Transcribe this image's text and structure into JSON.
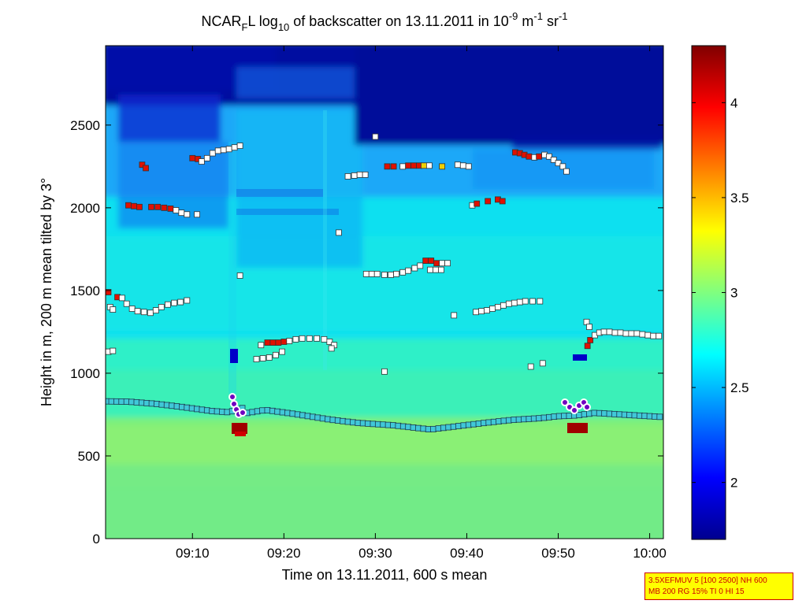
{
  "chart_data": {
    "type": "heatmap",
    "title": {
      "part1": "NCAR",
      "sub1": "F",
      "part2": "L log",
      "sub2": "10",
      "part3": " of backscatter on 13.11.2011 in 10",
      "sup1": "-9",
      "part4": " m",
      "sup2": "-1",
      "part5": " sr",
      "sup3": "-1"
    },
    "xlabel": "Time on 13.11.2011, 600 s mean",
    "ylabel": "Height in m, 200 m mean tilted by 3°",
    "xlim_minutes": [
      540.5,
      601.5
    ],
    "ylim": [
      0,
      2980
    ],
    "x_ticks": [
      {
        "minutes": 550,
        "label": "09:10"
      },
      {
        "minutes": 560,
        "label": "09:20"
      },
      {
        "minutes": 570,
        "label": "09:30"
      },
      {
        "minutes": 580,
        "label": "09:40"
      },
      {
        "minutes": 590,
        "label": "09:50"
      },
      {
        "minutes": 600,
        "label": "10:00"
      }
    ],
    "y_ticks": [
      0,
      500,
      1000,
      1500,
      2000,
      2500
    ],
    "colorbar": {
      "range": [
        1.7,
        4.3
      ],
      "ticks": [
        "2",
        "2.5",
        "3",
        "3.5",
        "4"
      ]
    },
    "boundary_layer_top": [
      [
        540.5,
        830
      ],
      [
        543,
        828
      ],
      [
        546,
        815
      ],
      [
        549,
        795
      ],
      [
        552,
        772
      ],
      [
        554,
        764
      ],
      [
        555.5,
        790
      ],
      [
        556,
        760
      ],
      [
        558,
        778
      ],
      [
        561,
        755
      ],
      [
        565,
        720
      ],
      [
        568,
        700
      ],
      [
        572,
        685
      ],
      [
        576,
        660
      ],
      [
        579,
        680
      ],
      [
        582,
        700
      ],
      [
        585,
        718
      ],
      [
        588,
        728
      ],
      [
        590,
        740
      ],
      [
        592,
        745
      ],
      [
        594,
        760
      ],
      [
        597,
        750
      ],
      [
        601.5,
        735
      ]
    ],
    "layer_points": [
      {
        "t": 540.8,
        "h": 1490,
        "v": "red"
      },
      {
        "t": 541,
        "h": 1400,
        "v": "white"
      },
      {
        "t": 541.3,
        "h": 1385,
        "v": "white"
      },
      {
        "t": 541.8,
        "h": 1460,
        "v": "red"
      },
      {
        "t": 542.3,
        "h": 1455,
        "v": "white"
      },
      {
        "t": 542.8,
        "h": 1420,
        "v": "white"
      },
      {
        "t": 543.4,
        "h": 1390,
        "v": "white"
      },
      {
        "t": 544,
        "h": 1375,
        "v": "white"
      },
      {
        "t": 544.7,
        "h": 1370,
        "v": "white"
      },
      {
        "t": 545.4,
        "h": 1365,
        "v": "white"
      },
      {
        "t": 546,
        "h": 1380,
        "v": "white"
      },
      {
        "t": 546.6,
        "h": 1400,
        "v": "white"
      },
      {
        "t": 547.3,
        "h": 1415,
        "v": "white"
      },
      {
        "t": 548,
        "h": 1425,
        "v": "white"
      },
      {
        "t": 548.7,
        "h": 1430,
        "v": "white"
      },
      {
        "t": 549.4,
        "h": 1440,
        "v": "white"
      },
      {
        "t": 540.8,
        "h": 1130,
        "v": "white"
      },
      {
        "t": 541.3,
        "h": 1135,
        "v": "white"
      },
      {
        "t": 543,
        "h": 2015,
        "v": "red"
      },
      {
        "t": 543.6,
        "h": 2010,
        "v": "red"
      },
      {
        "t": 544.2,
        "h": 2005,
        "v": "red"
      },
      {
        "t": 545.5,
        "h": 2005,
        "v": "red"
      },
      {
        "t": 546.2,
        "h": 2005,
        "v": "red"
      },
      {
        "t": 546.9,
        "h": 2000,
        "v": "red"
      },
      {
        "t": 547.6,
        "h": 1995,
        "v": "red"
      },
      {
        "t": 548.2,
        "h": 1985,
        "v": "white"
      },
      {
        "t": 548.8,
        "h": 1970,
        "v": "white"
      },
      {
        "t": 549.4,
        "h": 1960,
        "v": "white"
      },
      {
        "t": 550.5,
        "h": 1960,
        "v": "white"
      },
      {
        "t": 544.5,
        "h": 2260,
        "v": "red"
      },
      {
        "t": 544.9,
        "h": 2240,
        "v": "red"
      },
      {
        "t": 550,
        "h": 2300,
        "v": "red"
      },
      {
        "t": 550.6,
        "h": 2295,
        "v": "red"
      },
      {
        "t": 551,
        "h": 2280,
        "v": "white"
      },
      {
        "t": 551.6,
        "h": 2300,
        "v": "white"
      },
      {
        "t": 552.2,
        "h": 2330,
        "v": "white"
      },
      {
        "t": 552.8,
        "h": 2345,
        "v": "white"
      },
      {
        "t": 553.4,
        "h": 2350,
        "v": "white"
      },
      {
        "t": 554,
        "h": 2355,
        "v": "white"
      },
      {
        "t": 554.6,
        "h": 2365,
        "v": "white"
      },
      {
        "t": 555.2,
        "h": 2375,
        "v": "white"
      },
      {
        "t": 555.2,
        "h": 1590,
        "v": "white"
      },
      {
        "t": 557,
        "h": 1085,
        "v": "white"
      },
      {
        "t": 557.7,
        "h": 1090,
        "v": "white"
      },
      {
        "t": 558.4,
        "h": 1095,
        "v": "white"
      },
      {
        "t": 559.1,
        "h": 1110,
        "v": "white"
      },
      {
        "t": 559.8,
        "h": 1130,
        "v": "white"
      },
      {
        "t": 557.5,
        "h": 1170,
        "v": "white"
      },
      {
        "t": 558.2,
        "h": 1185,
        "v": "red"
      },
      {
        "t": 558.8,
        "h": 1185,
        "v": "red"
      },
      {
        "t": 559.4,
        "h": 1185,
        "v": "red"
      },
      {
        "t": 560,
        "h": 1190,
        "v": "red"
      },
      {
        "t": 560.6,
        "h": 1195,
        "v": "white"
      },
      {
        "t": 561.3,
        "h": 1205,
        "v": "white"
      },
      {
        "t": 562,
        "h": 1210,
        "v": "white"
      },
      {
        "t": 562.8,
        "h": 1210,
        "v": "white"
      },
      {
        "t": 563.6,
        "h": 1210,
        "v": "white"
      },
      {
        "t": 564.4,
        "h": 1205,
        "v": "white"
      },
      {
        "t": 565,
        "h": 1190,
        "v": "white"
      },
      {
        "t": 565.5,
        "h": 1170,
        "v": "white"
      },
      {
        "t": 565.2,
        "h": 1150,
        "v": "white"
      },
      {
        "t": 566,
        "h": 1850,
        "v": "white"
      },
      {
        "t": 567,
        "h": 2190,
        "v": "white"
      },
      {
        "t": 567.7,
        "h": 2195,
        "v": "white"
      },
      {
        "t": 568.3,
        "h": 2200,
        "v": "white"
      },
      {
        "t": 568.9,
        "h": 2200,
        "v": "white"
      },
      {
        "t": 570,
        "h": 2430,
        "v": "white"
      },
      {
        "t": 571.3,
        "h": 2250,
        "v": "red"
      },
      {
        "t": 572,
        "h": 2250,
        "v": "red"
      },
      {
        "t": 573,
        "h": 2250,
        "v": "white"
      },
      {
        "t": 573.6,
        "h": 2255,
        "v": "red"
      },
      {
        "t": 574.2,
        "h": 2255,
        "v": "red"
      },
      {
        "t": 574.8,
        "h": 2255,
        "v": "red"
      },
      {
        "t": 575.3,
        "h": 2255,
        "v": "yellow"
      },
      {
        "t": 575.9,
        "h": 2255,
        "v": "white"
      },
      {
        "t": 577.3,
        "h": 2250,
        "v": "yellow"
      },
      {
        "t": 579,
        "h": 2260,
        "v": "white"
      },
      {
        "t": 579.6,
        "h": 2255,
        "v": "white"
      },
      {
        "t": 580.2,
        "h": 2250,
        "v": "white"
      },
      {
        "t": 571,
        "h": 1010,
        "v": "white"
      },
      {
        "t": 569,
        "h": 1600,
        "v": "white"
      },
      {
        "t": 569.6,
        "h": 1600,
        "v": "white"
      },
      {
        "t": 570.2,
        "h": 1600,
        "v": "white"
      },
      {
        "t": 571,
        "h": 1595,
        "v": "white"
      },
      {
        "t": 571.7,
        "h": 1595,
        "v": "white"
      },
      {
        "t": 572.3,
        "h": 1600,
        "v": "white"
      },
      {
        "t": 573,
        "h": 1610,
        "v": "white"
      },
      {
        "t": 573.6,
        "h": 1620,
        "v": "white"
      },
      {
        "t": 574.3,
        "h": 1635,
        "v": "white"
      },
      {
        "t": 574.9,
        "h": 1650,
        "v": "white"
      },
      {
        "t": 575.5,
        "h": 1680,
        "v": "red"
      },
      {
        "t": 576.1,
        "h": 1680,
        "v": "red"
      },
      {
        "t": 576.7,
        "h": 1665,
        "v": "red"
      },
      {
        "t": 577.3,
        "h": 1665,
        "v": "white"
      },
      {
        "t": 577.9,
        "h": 1665,
        "v": "white"
      },
      {
        "t": 576,
        "h": 1625,
        "v": "white"
      },
      {
        "t": 576.6,
        "h": 1625,
        "v": "white"
      },
      {
        "t": 577.2,
        "h": 1625,
        "v": "white"
      },
      {
        "t": 578.6,
        "h": 1350,
        "v": "white"
      },
      {
        "t": 580.6,
        "h": 2015,
        "v": "white"
      },
      {
        "t": 581.1,
        "h": 2025,
        "v": "red"
      },
      {
        "t": 582.3,
        "h": 2040,
        "v": "red"
      },
      {
        "t": 583.4,
        "h": 2050,
        "v": "red"
      },
      {
        "t": 583.9,
        "h": 2040,
        "v": "red"
      },
      {
        "t": 581,
        "h": 1370,
        "v": "white"
      },
      {
        "t": 581.6,
        "h": 1375,
        "v": "white"
      },
      {
        "t": 582.2,
        "h": 1380,
        "v": "white"
      },
      {
        "t": 582.8,
        "h": 1390,
        "v": "white"
      },
      {
        "t": 583.4,
        "h": 1400,
        "v": "white"
      },
      {
        "t": 584,
        "h": 1410,
        "v": "white"
      },
      {
        "t": 584.6,
        "h": 1420,
        "v": "white"
      },
      {
        "t": 585.2,
        "h": 1425,
        "v": "white"
      },
      {
        "t": 585.8,
        "h": 1430,
        "v": "white"
      },
      {
        "t": 586.4,
        "h": 1435,
        "v": "white"
      },
      {
        "t": 587.2,
        "h": 1435,
        "v": "white"
      },
      {
        "t": 588,
        "h": 1435,
        "v": "white"
      },
      {
        "t": 585.3,
        "h": 2335,
        "v": "red"
      },
      {
        "t": 585.8,
        "h": 2330,
        "v": "red"
      },
      {
        "t": 586.3,
        "h": 2320,
        "v": "red"
      },
      {
        "t": 586.8,
        "h": 2310,
        "v": "red"
      },
      {
        "t": 587.4,
        "h": 2305,
        "v": "white"
      },
      {
        "t": 587.9,
        "h": 2310,
        "v": "red"
      },
      {
        "t": 588.5,
        "h": 2320,
        "v": "white"
      },
      {
        "t": 589,
        "h": 2310,
        "v": "white"
      },
      {
        "t": 589.5,
        "h": 2290,
        "v": "white"
      },
      {
        "t": 590,
        "h": 2270,
        "v": "white"
      },
      {
        "t": 590.5,
        "h": 2250,
        "v": "white"
      },
      {
        "t": 590.9,
        "h": 2220,
        "v": "white"
      },
      {
        "t": 587,
        "h": 1040,
        "v": "white"
      },
      {
        "t": 588.3,
        "h": 1060,
        "v": "white"
      },
      {
        "t": 593.1,
        "h": 1310,
        "v": "white"
      },
      {
        "t": 593.4,
        "h": 1280,
        "v": "white"
      },
      {
        "t": 593.5,
        "h": 1200,
        "v": "red"
      },
      {
        "t": 593.2,
        "h": 1165,
        "v": "red"
      },
      {
        "t": 594,
        "h": 1230,
        "v": "white"
      },
      {
        "t": 594.5,
        "h": 1245,
        "v": "white"
      },
      {
        "t": 595,
        "h": 1250,
        "v": "white"
      },
      {
        "t": 595.6,
        "h": 1250,
        "v": "white"
      },
      {
        "t": 596.2,
        "h": 1245,
        "v": "white"
      },
      {
        "t": 596.8,
        "h": 1245,
        "v": "white"
      },
      {
        "t": 597.4,
        "h": 1240,
        "v": "white"
      },
      {
        "t": 598,
        "h": 1240,
        "v": "white"
      },
      {
        "t": 598.6,
        "h": 1240,
        "v": "white"
      },
      {
        "t": 599.2,
        "h": 1235,
        "v": "white"
      },
      {
        "t": 599.8,
        "h": 1230,
        "v": "white"
      },
      {
        "t": 600.4,
        "h": 1225,
        "v": "white"
      },
      {
        "t": 601,
        "h": 1225,
        "v": "white"
      }
    ]
  },
  "info_box": {
    "line1": "3.5XEFMUV 5 [100 2500] NH 600",
    "line2": "MB 200 RG 15% TI 0 HI 15"
  }
}
